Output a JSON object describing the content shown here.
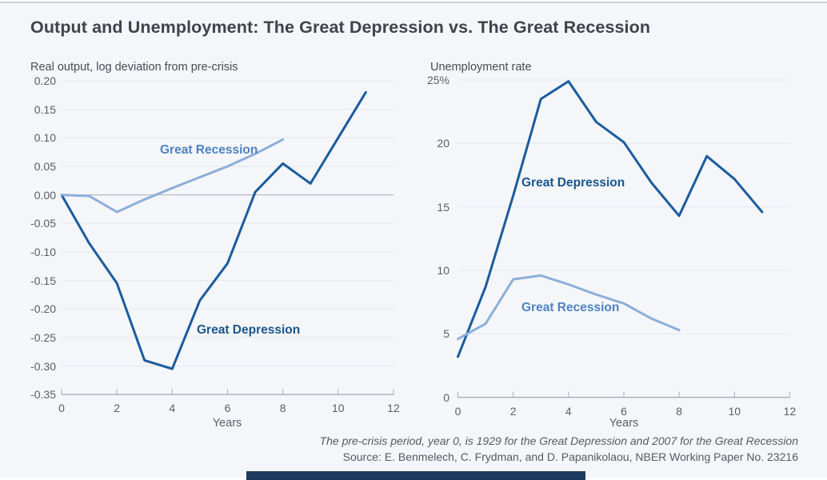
{
  "page": {
    "title": "Output and Unemployment: The Great Depression vs. The Great Recession",
    "footnote_line1": "The pre-crisis period, year 0, is 1929 for the Great Depression and 2007 for the Great Recession",
    "footnote_line2": "Source: E. Benmelech, C. Frydman, and D. Papanikolaou, NBER Working Paper No. 23216"
  },
  "colors": {
    "background": "#f5f6f9",
    "grid": "#e4e7ed",
    "axis": "#a8acb4",
    "depression_line": "#1a5c9e",
    "recession_line": "#8cafd9",
    "depression_label": "#17568e",
    "recession_label": "#4d83c3",
    "footer_bar": "#1e3a5f"
  },
  "chart_data": [
    {
      "type": "line",
      "title": "Real output, log deviation from pre-crisis",
      "xlabel": "Years",
      "xlim": [
        0,
        12
      ],
      "ylim": [
        -0.35,
        0.2
      ],
      "grid": true,
      "legend_position": "inline-labels",
      "x_ticks": [
        0,
        2,
        4,
        6,
        8,
        10,
        12
      ],
      "y_ticks": [
        "0.20",
        "0.15",
        "0.10",
        "0.05",
        "0.00",
        "-0.05",
        "-0.10",
        "-0.15",
        "-0.20",
        "-0.25",
        "-0.30",
        "-0.35"
      ],
      "series": [
        {
          "name": "Great Depression",
          "x": [
            0,
            1,
            2,
            3,
            4,
            5,
            6,
            7,
            8,
            9,
            10,
            11
          ],
          "values": [
            0.0,
            -0.085,
            -0.155,
            -0.29,
            -0.305,
            -0.185,
            -0.12,
            0.005,
            0.055,
            0.02,
            0.1,
            0.18
          ]
        },
        {
          "name": "Great Recession",
          "x": [
            0,
            1,
            2,
            3,
            4,
            5,
            6,
            7,
            8
          ],
          "values": [
            0.0,
            -0.002,
            -0.03,
            -0.008,
            0.012,
            0.031,
            0.05,
            0.072,
            0.097
          ]
        }
      ]
    },
    {
      "type": "line",
      "title": "Unemployment rate",
      "xlabel": "Years",
      "xlim": [
        0,
        12
      ],
      "ylim": [
        0,
        25
      ],
      "grid": true,
      "legend_position": "inline-labels",
      "x_ticks": [
        0,
        2,
        4,
        6,
        8,
        10,
        12
      ],
      "y_ticks": [
        "25%",
        "20",
        "15",
        "10",
        "5",
        "0"
      ],
      "series": [
        {
          "name": "Great Depression",
          "x": [
            0,
            1,
            2,
            3,
            4,
            5,
            6,
            7,
            8,
            9,
            10,
            11
          ],
          "values": [
            3.2,
            8.7,
            15.9,
            23.5,
            24.9,
            21.7,
            20.1,
            16.9,
            14.3,
            19.0,
            17.2,
            14.6
          ]
        },
        {
          "name": "Great Recession",
          "x": [
            0,
            1,
            2,
            3,
            4,
            5,
            6,
            7,
            8
          ],
          "values": [
            4.6,
            5.8,
            9.3,
            9.6,
            8.9,
            8.1,
            7.4,
            6.2,
            5.3
          ]
        }
      ]
    }
  ]
}
